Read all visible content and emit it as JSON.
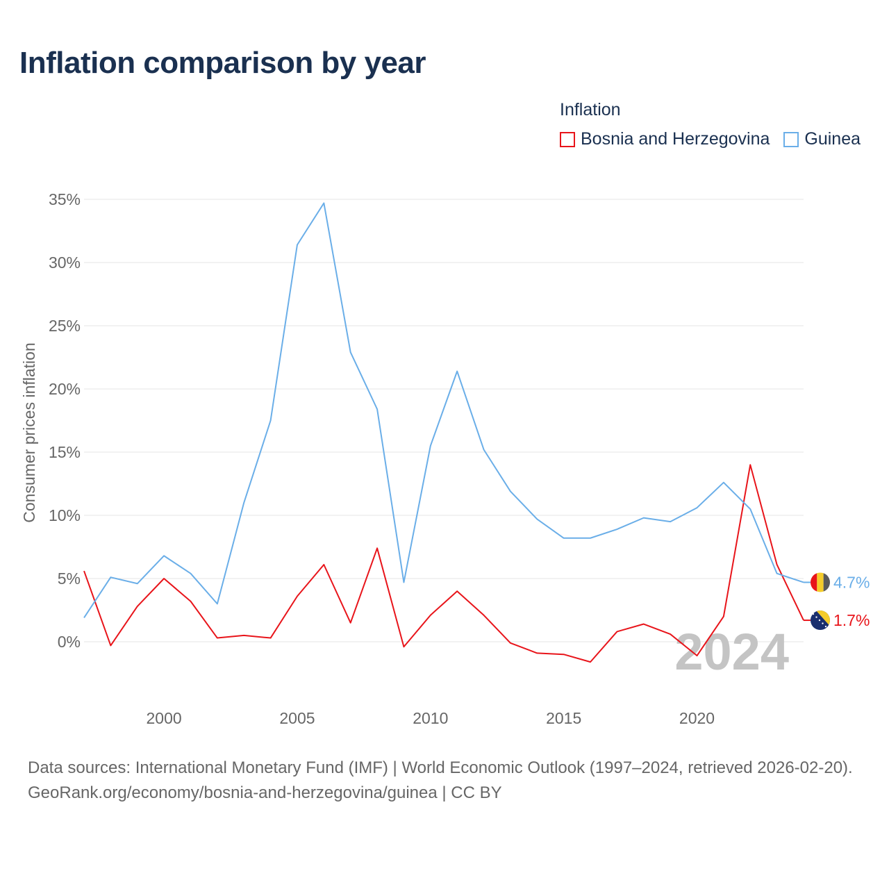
{
  "title": "Inflation comparison by year",
  "legend": {
    "title": "Inflation",
    "items": [
      {
        "label": "Bosnia and Herzegovina",
        "color": "#e8141a"
      },
      {
        "label": "Guinea",
        "color": "#6aaee8"
      }
    ]
  },
  "chart_data": {
    "type": "line",
    "title": "Inflation comparison by year",
    "xlabel": "",
    "ylabel": "Consumer prices inflation",
    "xlim": [
      1997,
      2024
    ],
    "ylim": [
      -4,
      36
    ],
    "x_ticks": [
      2000,
      2005,
      2010,
      2015,
      2020
    ],
    "y_ticks": [
      0,
      5,
      10,
      15,
      20,
      25,
      30,
      35
    ],
    "y_tick_labels": [
      "0%",
      "5%",
      "10%",
      "15%",
      "20%",
      "25%",
      "30%",
      "35%"
    ],
    "grid": true,
    "year_watermark": "2024",
    "x": [
      1997,
      1998,
      1999,
      2000,
      2001,
      2002,
      2003,
      2004,
      2005,
      2006,
      2007,
      2008,
      2009,
      2010,
      2011,
      2012,
      2013,
      2014,
      2015,
      2016,
      2017,
      2018,
      2019,
      2020,
      2021,
      2022,
      2023,
      2024
    ],
    "series": [
      {
        "name": "Bosnia and Herzegovina",
        "color": "#e8141a",
        "end_label": "1.7%",
        "values": [
          5.6,
          -0.3,
          2.8,
          5.0,
          3.2,
          0.3,
          0.5,
          0.3,
          3.6,
          6.1,
          1.5,
          7.4,
          -0.4,
          2.1,
          4.0,
          2.1,
          -0.1,
          -0.9,
          -1.0,
          -1.6,
          0.8,
          1.4,
          0.6,
          -1.1,
          2.0,
          14.0,
          6.1,
          1.7
        ]
      },
      {
        "name": "Guinea",
        "color": "#6aaee8",
        "end_label": "4.7%",
        "values": [
          1.9,
          5.1,
          4.6,
          6.8,
          5.4,
          3.0,
          11.0,
          17.5,
          31.4,
          34.7,
          22.9,
          18.4,
          4.7,
          15.5,
          21.4,
          15.2,
          11.9,
          9.7,
          8.2,
          8.2,
          8.9,
          9.8,
          9.5,
          10.6,
          12.6,
          10.5,
          5.4,
          4.7
        ]
      }
    ]
  },
  "footer": {
    "line1": "Data sources: International Monetary Fund (IMF) | World Economic Outlook (1997–2024, retrieved 2026-02-20).",
    "line2": "GeoRank.org/economy/bosnia-and-herzegovina/guinea | CC BY"
  }
}
